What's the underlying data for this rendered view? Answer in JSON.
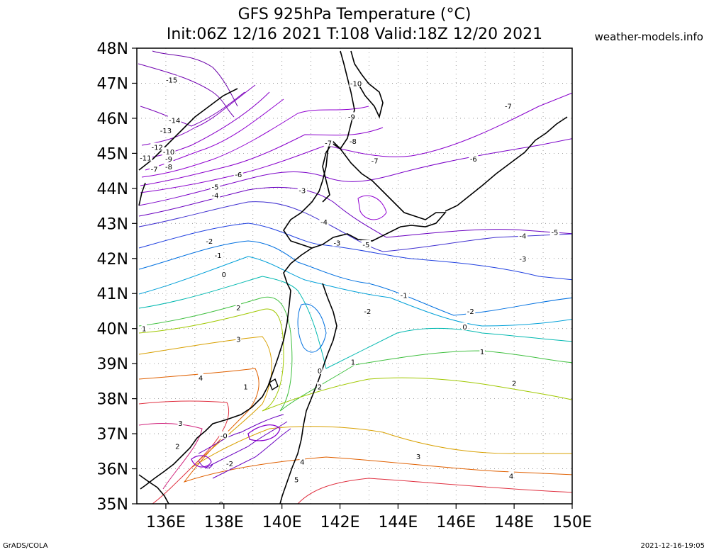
{
  "title_line1": "GFS 925hPa Temperature (°C)",
  "title_line2": "Init:06Z 12/16 2021 T:108 Valid:18Z 12/20 2021",
  "site": "weather-models.info",
  "footer_left": "GrADS/COLA",
  "footer_right": "2021-12-16-19:05",
  "lat_labels": [
    "48N",
    "47N",
    "46N",
    "45N",
    "44N",
    "43N",
    "42N",
    "41N",
    "40N",
    "39N",
    "38N",
    "37N",
    "36N",
    "35N"
  ],
  "lon_labels": [
    "136E",
    "138E",
    "140E",
    "142E",
    "144E",
    "146E",
    "148E",
    "150E"
  ],
  "contour_labels": [
    {
      "t": "-15",
      "lon": 136.2,
      "lat": 47.1
    },
    {
      "t": "-14",
      "lon": 136.3,
      "lat": 45.95
    },
    {
      "t": "-13",
      "lon": 136.0,
      "lat": 45.65
    },
    {
      "t": "-12",
      "lon": 135.7,
      "lat": 45.18
    },
    {
      "t": "-11",
      "lon": 135.3,
      "lat": 44.88
    },
    {
      "t": "-10",
      "lon": 136.1,
      "lat": 45.05
    },
    {
      "t": "-9",
      "lon": 136.1,
      "lat": 44.85
    },
    {
      "t": "-8",
      "lon": 136.1,
      "lat": 44.62
    },
    {
      "t": "-7",
      "lon": 135.6,
      "lat": 44.55
    },
    {
      "t": "-6",
      "lon": 138.5,
      "lat": 44.4
    },
    {
      "t": "-5",
      "lon": 137.7,
      "lat": 44.05
    },
    {
      "t": "-4",
      "lon": 137.7,
      "lat": 43.8
    },
    {
      "t": "-3",
      "lon": 140.7,
      "lat": 43.95
    },
    {
      "t": "-4",
      "lon": 141.45,
      "lat": 43.05
    },
    {
      "t": "-2",
      "lon": 137.5,
      "lat": 42.5
    },
    {
      "t": "-1",
      "lon": 137.8,
      "lat": 42.1
    },
    {
      "t": "0",
      "lon": 138.0,
      "lat": 41.55
    },
    {
      "t": "2",
      "lon": 138.5,
      "lat": 40.6
    },
    {
      "t": "1",
      "lon": 135.25,
      "lat": 40.0
    },
    {
      "t": "3",
      "lon": 138.5,
      "lat": 39.7
    },
    {
      "t": "4",
      "lon": 137.2,
      "lat": 38.6
    },
    {
      "t": "3",
      "lon": 136.5,
      "lat": 37.3
    },
    {
      "t": "2",
      "lon": 136.4,
      "lat": 36.65
    },
    {
      "t": "-0",
      "lon": 138.0,
      "lat": 36.95
    },
    {
      "t": "-2",
      "lon": 138.2,
      "lat": 36.15
    },
    {
      "t": "0",
      "lon": 137.9,
      "lat": 35.0
    },
    {
      "t": "1",
      "lon": 138.75,
      "lat": 38.35
    },
    {
      "t": "0",
      "lon": 141.3,
      "lat": 38.8
    },
    {
      "t": "2",
      "lon": 141.3,
      "lat": 38.35
    },
    {
      "t": "1",
      "lon": 142.45,
      "lat": 39.05
    },
    {
      "t": "-2",
      "lon": 142.95,
      "lat": 40.5
    },
    {
      "t": "-1",
      "lon": 144.2,
      "lat": 40.95
    },
    {
      "t": "0",
      "lon": 146.3,
      "lat": 40.05
    },
    {
      "t": "-2",
      "lon": 146.5,
      "lat": 40.5
    },
    {
      "t": "1",
      "lon": 146.9,
      "lat": 39.35
    },
    {
      "t": "2",
      "lon": 148.0,
      "lat": 38.45
    },
    {
      "t": "3",
      "lon": 144.7,
      "lat": 36.35
    },
    {
      "t": "4",
      "lon": 140.7,
      "lat": 36.2
    },
    {
      "t": "5",
      "lon": 140.5,
      "lat": 35.7
    },
    {
      "t": "4",
      "lon": 147.9,
      "lat": 35.8
    },
    {
      "t": "-3",
      "lon": 141.9,
      "lat": 42.45
    },
    {
      "t": "-5",
      "lon": 142.9,
      "lat": 42.4
    },
    {
      "t": "-3",
      "lon": 148.3,
      "lat": 42.0
    },
    {
      "t": "-4",
      "lon": 148.3,
      "lat": 42.65
    },
    {
      "t": "-5",
      "lon": 149.4,
      "lat": 42.75
    },
    {
      "t": "-6",
      "lon": 146.6,
      "lat": 44.85
    },
    {
      "t": "-7",
      "lon": 147.8,
      "lat": 46.35
    },
    {
      "t": "-7",
      "lon": 141.6,
      "lat": 45.3
    },
    {
      "t": "-8",
      "lon": 142.45,
      "lat": 45.35
    },
    {
      "t": "-7",
      "lon": 143.2,
      "lat": 44.8
    },
    {
      "t": "-9",
      "lon": 142.4,
      "lat": 46.05
    },
    {
      "t": "-10",
      "lon": 142.55,
      "lat": 47.0
    }
  ],
  "color_scale": {
    "-15": "#6a00a8",
    "-13": "#7a00b8",
    "-11": "#8a00c8",
    "-9": "#9000d0",
    "-7": "#8800cc",
    "-5": "#6a00c0",
    "-4": "#4030d0",
    "-3": "#2040e0",
    "-2": "#0070e0",
    "-1": "#00a0d8",
    "0": "#00b8b0",
    "1": "#40c040",
    "2": "#a0c800",
    "3": "#d8a000",
    "4": "#e06000",
    "5": "#e03040"
  },
  "map_extent": {
    "lon": [
      135,
      150
    ],
    "lat": [
      35,
      48
    ]
  }
}
